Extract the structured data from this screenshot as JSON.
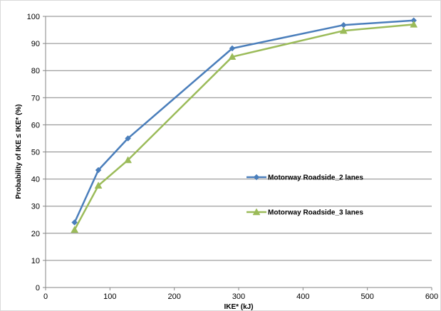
{
  "chart_data": {
    "type": "line",
    "title": "",
    "xlabel": "IKE* (kJ)",
    "ylabel": "Probability of IKE ≤ IKE* (%)",
    "xlim": [
      0,
      600
    ],
    "ylim": [
      0,
      100
    ],
    "x_ticks": [
      0,
      100,
      200,
      300,
      400,
      500,
      600
    ],
    "y_ticks": [
      0,
      10,
      20,
      30,
      40,
      50,
      60,
      70,
      80,
      90,
      100
    ],
    "grid": "horizontal",
    "legend_position": "center-right",
    "series": [
      {
        "name": "Motorway Roadside_2 lanes",
        "color": "#4a7ebb",
        "marker": "diamond",
        "x": [
          45,
          82,
          128,
          290,
          463,
          572
        ],
        "y": [
          24,
          43.3,
          55,
          88.2,
          96.8,
          98.5
        ]
      },
      {
        "name": "Motorway Roadside_3 lanes",
        "color": "#9bbb59",
        "marker": "triangle",
        "x": [
          45,
          82,
          128,
          290,
          463,
          572
        ],
        "y": [
          21.3,
          37.6,
          47,
          85.1,
          94.7,
          97
        ]
      }
    ]
  }
}
